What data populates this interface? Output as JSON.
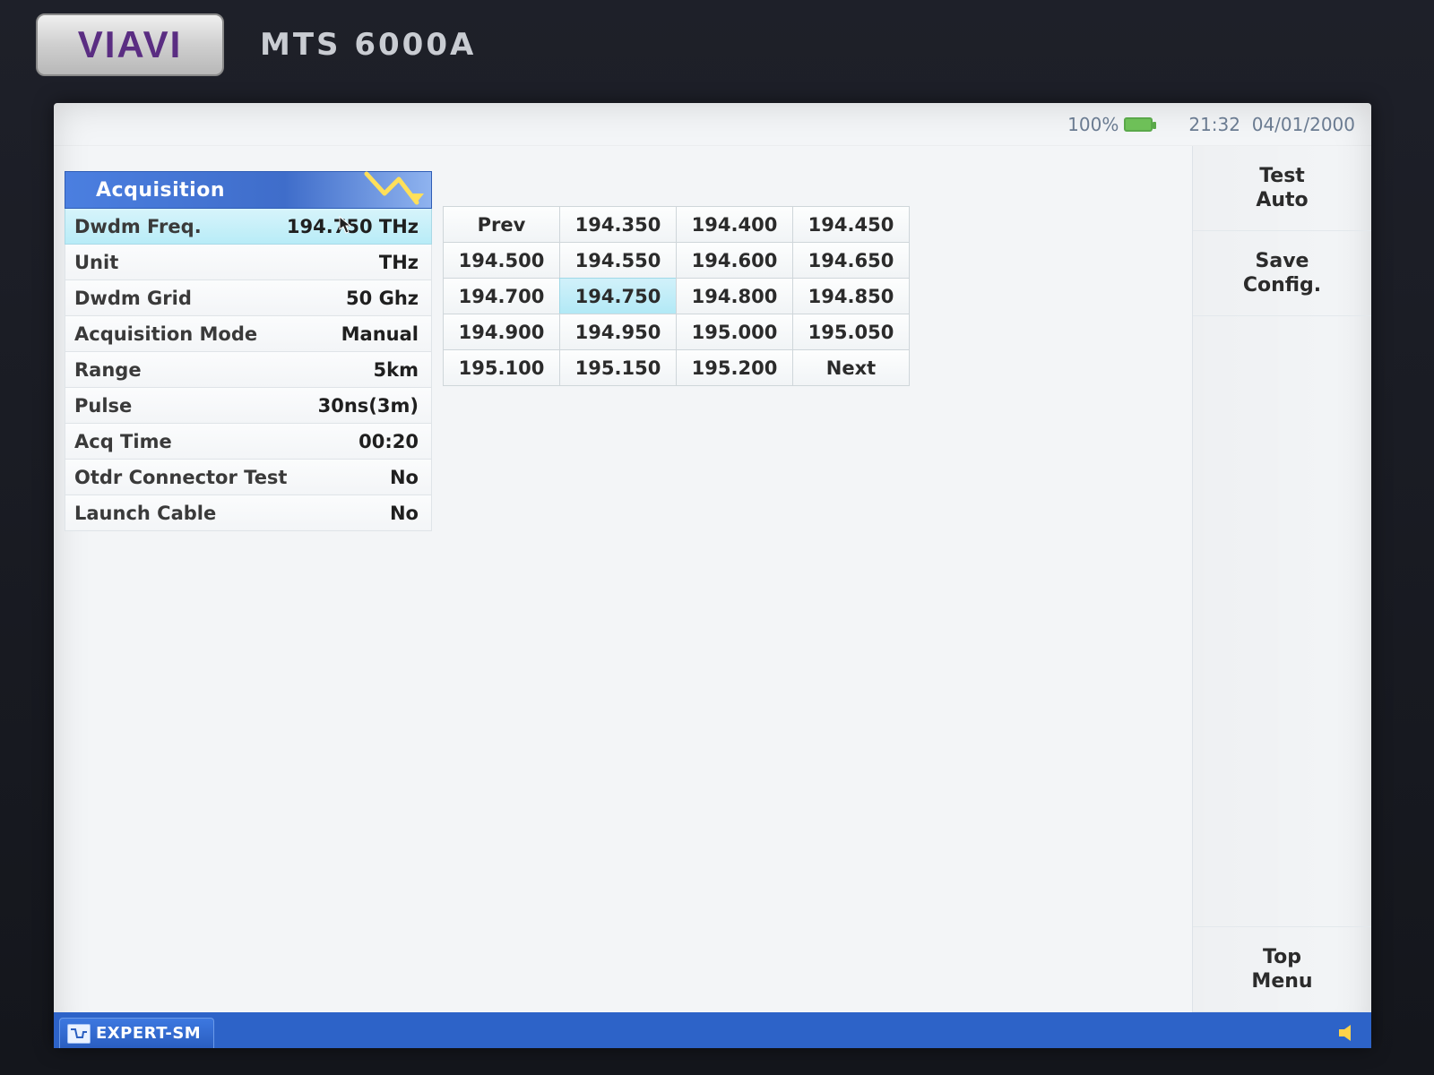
{
  "device": {
    "brand": "VIAVI",
    "model": "MTS 6000A"
  },
  "colors": {
    "bezel": "#1a1d24",
    "screen_bg": "#f3f5f7",
    "header_blue_from": "#4b7fe0",
    "header_blue_to": "#3f6dca",
    "header_blue_tail": "#8fb3ef",
    "selected_cell_from": "#d1f1fa",
    "selected_cell_to": "#b2e9f6",
    "grid_border": "#cfd6da",
    "param_border": "#dfe4e8",
    "tabbar": "#2d63c8",
    "text_primary": "#2b2b2b",
    "status_text": "#6a7b91",
    "battery_green": "#6ec058",
    "brand_purple": "#5a2d82",
    "speaker_yellow": "#ffd24a"
  },
  "statusbar": {
    "battery_pct": "100%",
    "time": "21:32",
    "date": "04/01/2000"
  },
  "panel": {
    "title": "Acquisition",
    "selected_index": 0,
    "rows": [
      {
        "label": "Dwdm Freq.",
        "value": "194.750 THz"
      },
      {
        "label": "Unit",
        "value": "THz"
      },
      {
        "label": "Dwdm Grid",
        "value": "50 Ghz"
      },
      {
        "label": "Acquisition Mode",
        "value": "Manual"
      },
      {
        "label": "Range",
        "value": "5km"
      },
      {
        "label": "Pulse",
        "value": "30ns(3m)"
      },
      {
        "label": "Acq Time",
        "value": "00:20"
      },
      {
        "label": "Otdr Connector Test",
        "value": "No"
      },
      {
        "label": "Launch Cable",
        "value": "No"
      }
    ]
  },
  "freq_grid": {
    "columns": 4,
    "selected_index": 9,
    "cells": [
      "Prev",
      "194.350",
      "194.400",
      "194.450",
      "194.500",
      "194.550",
      "194.600",
      "194.650",
      "194.700",
      "194.750",
      "194.800",
      "194.850",
      "194.900",
      "194.950",
      "195.000",
      "195.050",
      "195.100",
      "195.150",
      "195.200",
      "Next"
    ]
  },
  "softkeys": {
    "items": [
      {
        "line1": "Test",
        "line2": "Auto"
      },
      {
        "line1": "Save",
        "line2": "Config."
      }
    ],
    "bottom": {
      "line1": "Top",
      "line2": "Menu"
    }
  },
  "tabs": {
    "active": "EXPERT-SM"
  }
}
